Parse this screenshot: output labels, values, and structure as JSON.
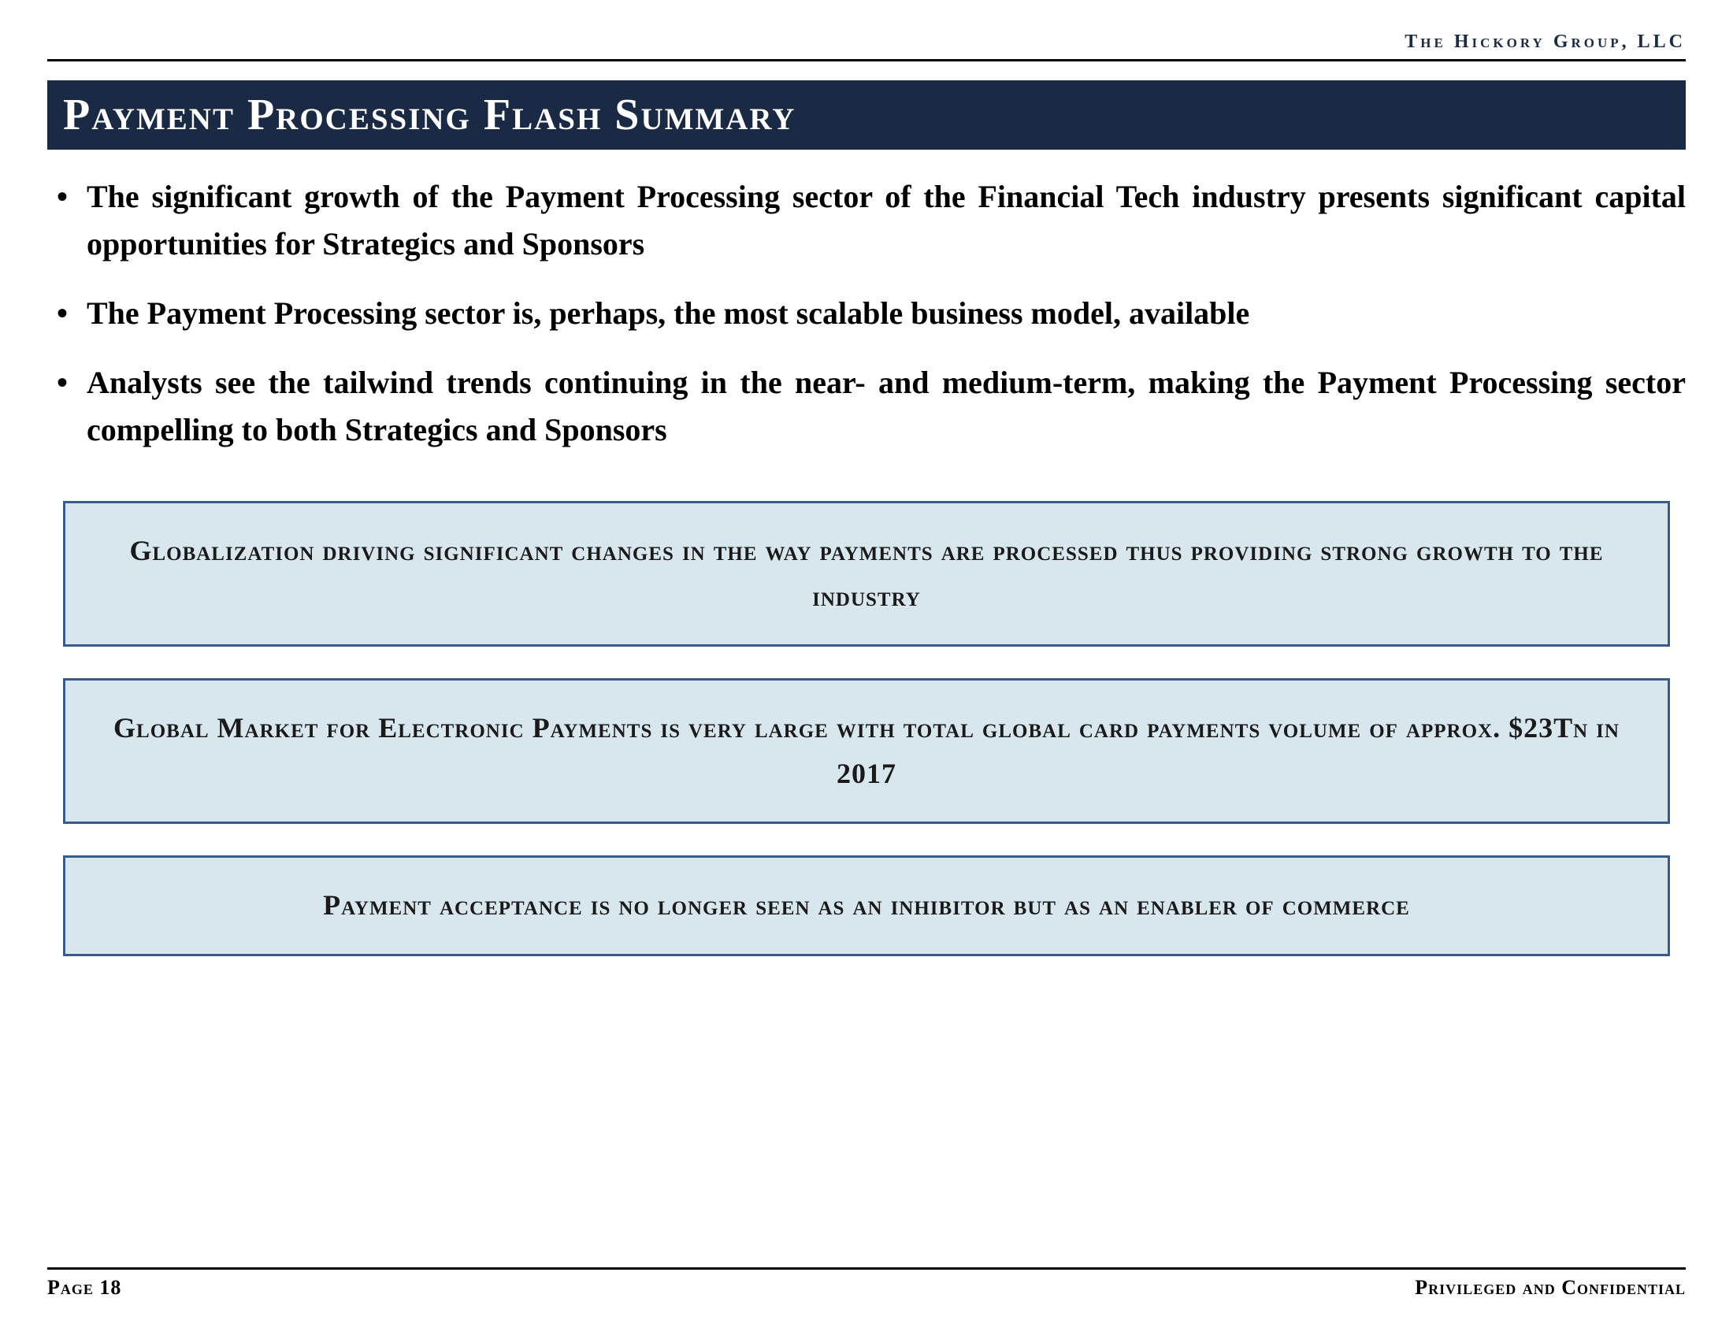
{
  "header": {
    "company_name": "The Hickory Group, LLC"
  },
  "title": "Payment Processing Flash Summary",
  "bullets": [
    "The significant growth of the Payment Processing sector of the Financial Tech industry presents significant capital opportunities for Strategics and Sponsors",
    "The Payment Processing sector is, perhaps, the most scalable business model, available",
    "Analysts see the tailwind trends continuing in the near- and medium-term, making the Payment Processing sector compelling to both Strategics and Sponsors"
  ],
  "callouts": [
    "Globalization driving significant changes in the way payments are processed thus providing strong growth to the industry",
    "Global Market for Electronic Payments is very large with total global card payments volume of approx. $23Tn in 2017",
    "Payment acceptance is no longer seen as an inhibitor but as an enabler of commerce"
  ],
  "footer": {
    "page_label": "Page 18",
    "confidential_label": "Privileged and Confidential"
  },
  "styling": {
    "title_bg": "#1a2a44",
    "title_fg": "#ffffff",
    "callout_bg": "#d8e6ee",
    "callout_border": "#3a5a8a",
    "body_font": "Georgia, serif",
    "rule_color": "#000000",
    "body_fontsize_pt": 40,
    "callout_fontsize_pt": 36,
    "title_fontsize_pt": 56
  }
}
